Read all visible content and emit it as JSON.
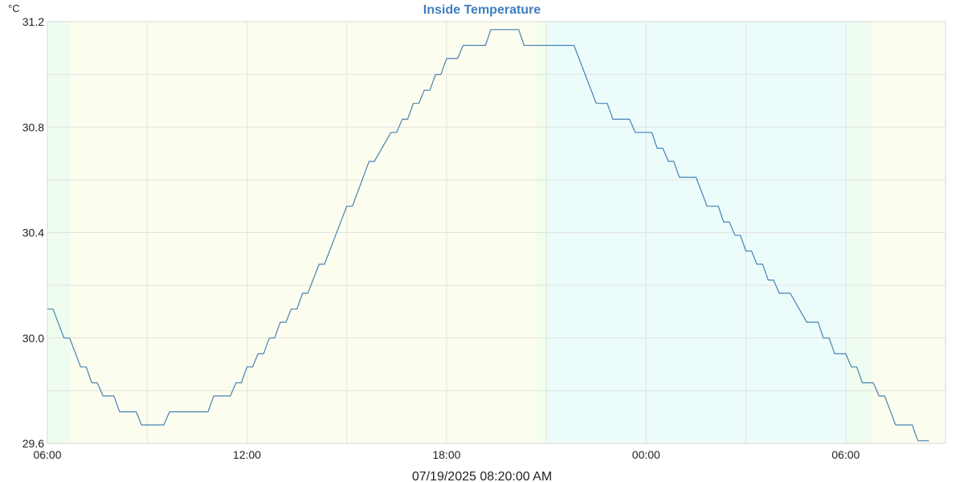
{
  "chart_data": {
    "type": "line",
    "title": "Inside Temperature",
    "ylabel": "°C",
    "xlabel": "07/19/2025 08:20:00 AM",
    "x_unit": "hours since 06:00 on 07/18/2025",
    "xlim": [
      0,
      27
    ],
    "ylim": [
      29.6,
      31.2
    ],
    "grid": true,
    "x_ticks": [
      {
        "x": 0,
        "label": "06:00"
      },
      {
        "x": 6,
        "label": "12:00"
      },
      {
        "x": 12,
        "label": "18:00"
      },
      {
        "x": 18,
        "label": "00:00"
      },
      {
        "x": 24,
        "label": "06:00"
      }
    ],
    "y_ticks": [
      {
        "y": 29.6,
        "label": "29.6"
      },
      {
        "y": 30.0,
        "label": "30.0"
      },
      {
        "y": 30.4,
        "label": "30.4"
      },
      {
        "y": 30.8,
        "label": "30.8"
      },
      {
        "y": 31.2,
        "label": "31.2"
      }
    ],
    "y_minor_gridlines": [
      29.8,
      30.2,
      30.6,
      31.0
    ],
    "background_bands": [
      {
        "name": "dawn",
        "x_start": 0,
        "x_end": 0.7,
        "color": "#eefdf0"
      },
      {
        "name": "day",
        "x_start": 0.7,
        "x_end": 14.7,
        "color": "#fdfdef"
      },
      {
        "name": "dusk",
        "x_start": 14.7,
        "x_end": 15.0,
        "color": "#f2fdec"
      },
      {
        "name": "night",
        "x_start": 15.0,
        "x_end": 24.0,
        "color": "#ecfcfb"
      },
      {
        "name": "dawn",
        "x_start": 24.0,
        "x_end": 24.8,
        "color": "#eefdf0"
      },
      {
        "name": "day",
        "x_start": 24.8,
        "x_end": 27,
        "color": "#fdfdef"
      }
    ],
    "series": [
      {
        "name": "",
        "color": "#4682b4",
        "points": [
          [
            0.0,
            30.11
          ],
          [
            0.17,
            30.11
          ],
          [
            0.5,
            30.0
          ],
          [
            0.67,
            30.0
          ],
          [
            1.0,
            29.89
          ],
          [
            1.17,
            29.89
          ],
          [
            1.33,
            29.83
          ],
          [
            1.5,
            29.83
          ],
          [
            1.67,
            29.78
          ],
          [
            2.0,
            29.78
          ],
          [
            2.17,
            29.72
          ],
          [
            2.67,
            29.72
          ],
          [
            2.83,
            29.67
          ],
          [
            3.5,
            29.67
          ],
          [
            3.67,
            29.72
          ],
          [
            4.83,
            29.72
          ],
          [
            5.0,
            29.78
          ],
          [
            5.5,
            29.78
          ],
          [
            5.67,
            29.83
          ],
          [
            5.83,
            29.83
          ],
          [
            6.0,
            29.89
          ],
          [
            6.17,
            29.89
          ],
          [
            6.33,
            29.94
          ],
          [
            6.5,
            29.94
          ],
          [
            6.67,
            30.0
          ],
          [
            6.83,
            30.0
          ],
          [
            7.0,
            30.06
          ],
          [
            7.17,
            30.06
          ],
          [
            7.33,
            30.11
          ],
          [
            7.5,
            30.11
          ],
          [
            7.67,
            30.17
          ],
          [
            7.83,
            30.17
          ],
          [
            8.17,
            30.28
          ],
          [
            8.33,
            30.28
          ],
          [
            9.0,
            30.5
          ],
          [
            9.17,
            30.5
          ],
          [
            9.67,
            30.67
          ],
          [
            9.83,
            30.67
          ],
          [
            10.33,
            30.78
          ],
          [
            10.5,
            30.78
          ],
          [
            10.67,
            30.83
          ],
          [
            10.83,
            30.83
          ],
          [
            11.0,
            30.89
          ],
          [
            11.17,
            30.89
          ],
          [
            11.33,
            30.94
          ],
          [
            11.5,
            30.94
          ],
          [
            11.67,
            31.0
          ],
          [
            11.83,
            31.0
          ],
          [
            12.0,
            31.06
          ],
          [
            12.33,
            31.06
          ],
          [
            12.5,
            31.11
          ],
          [
            13.17,
            31.11
          ],
          [
            13.33,
            31.17
          ],
          [
            14.17,
            31.17
          ],
          [
            14.33,
            31.11
          ],
          [
            15.83,
            31.11
          ],
          [
            16.5,
            30.89
          ],
          [
            16.83,
            30.89
          ],
          [
            17.0,
            30.83
          ],
          [
            17.5,
            30.83
          ],
          [
            17.67,
            30.78
          ],
          [
            18.17,
            30.78
          ],
          [
            18.33,
            30.72
          ],
          [
            18.5,
            30.72
          ],
          [
            18.67,
            30.67
          ],
          [
            18.83,
            30.67
          ],
          [
            19.0,
            30.61
          ],
          [
            19.5,
            30.61
          ],
          [
            19.83,
            30.5
          ],
          [
            20.17,
            30.5
          ],
          [
            20.33,
            30.44
          ],
          [
            20.5,
            30.44
          ],
          [
            20.67,
            30.39
          ],
          [
            20.83,
            30.39
          ],
          [
            21.0,
            30.33
          ],
          [
            21.17,
            30.33
          ],
          [
            21.33,
            30.28
          ],
          [
            21.5,
            30.28
          ],
          [
            21.67,
            30.22
          ],
          [
            21.83,
            30.22
          ],
          [
            22.0,
            30.17
          ],
          [
            22.33,
            30.17
          ],
          [
            22.83,
            30.06
          ],
          [
            23.17,
            30.06
          ],
          [
            23.33,
            30.0
          ],
          [
            23.5,
            30.0
          ],
          [
            23.67,
            29.94
          ],
          [
            24.0,
            29.94
          ],
          [
            24.17,
            29.89
          ],
          [
            24.33,
            29.89
          ],
          [
            24.5,
            29.83
          ],
          [
            24.83,
            29.83
          ],
          [
            25.0,
            29.78
          ],
          [
            25.17,
            29.78
          ],
          [
            25.5,
            29.67
          ],
          [
            26.0,
            29.67
          ],
          [
            26.17,
            29.61
          ],
          [
            26.5,
            29.61
          ]
        ]
      }
    ]
  }
}
